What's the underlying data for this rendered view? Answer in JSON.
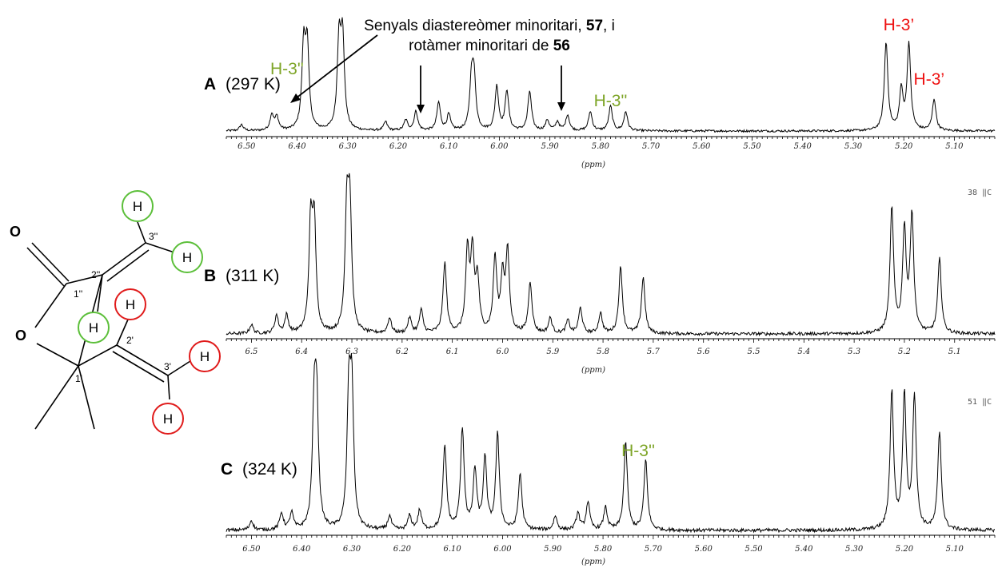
{
  "colors": {
    "green": "#7ea528",
    "red": "#ee1111",
    "circle_green": "#5cbf3a",
    "circle_red": "#e01b1b"
  },
  "annotation": {
    "line1": "Senyals diastereòmer minoritari, ",
    "line1_bold": "57",
    "line1_end": ", i",
    "line2": "rotàmer minoritari de ",
    "line2_bold": "56"
  },
  "side_numbers": [
    "38 ‖C",
    "51 ‖C"
  ],
  "molecule": {
    "atoms": {
      "O_carbonyl": "O",
      "O_ring": "O",
      "H": "H"
    },
    "locants": [
      "1''",
      "2''",
      "3''",
      "1'",
      "2'",
      "3'"
    ]
  },
  "chart_data": [
    {
      "type": "line",
      "id": "A",
      "label_letter": "A",
      "label_temp": "(297 K)",
      "xlabel": "(ppm)",
      "xlim": [
        6.54,
        5.02
      ],
      "reversed_x": true,
      "tick_labels": [
        "6.50",
        "6.40",
        "6.30",
        "6.20",
        "6.10",
        "6.00",
        "5.90",
        "5.80",
        "5.70",
        "5.60",
        "5.50",
        "5.40",
        "5.30",
        "5.20",
        "5.10"
      ],
      "peaks": [
        [
          6.51,
          0.07
        ],
        [
          6.45,
          0.18
        ],
        [
          6.44,
          0.15
        ],
        [
          6.387,
          0.92
        ],
        [
          6.38,
          0.92
        ],
        [
          6.317,
          1.0
        ],
        [
          6.31,
          1.0
        ],
        [
          6.225,
          0.1
        ],
        [
          6.185,
          0.12
        ],
        [
          6.165,
          0.22
        ],
        [
          6.12,
          0.32
        ],
        [
          6.1,
          0.18
        ],
        [
          6.055,
          0.55
        ],
        [
          6.05,
          0.55
        ],
        [
          6.005,
          0.5
        ],
        [
          5.985,
          0.45
        ],
        [
          5.94,
          0.45
        ],
        [
          5.905,
          0.12
        ],
        [
          5.885,
          0.1
        ],
        [
          5.865,
          0.18
        ],
        [
          5.82,
          0.22
        ],
        [
          5.78,
          0.28
        ],
        [
          5.75,
          0.22
        ],
        [
          5.235,
          1.0
        ],
        [
          5.205,
          0.45
        ],
        [
          5.19,
          0.98
        ],
        [
          5.14,
          0.36
        ]
      ],
      "hlabels": [
        {
          "text": "H-3''",
          "color_key": "green",
          "ppm": 6.42
        },
        {
          "text": "H-3''",
          "color_key": "green",
          "ppm": 5.78
        },
        {
          "text": "H-3’",
          "color_key": "red",
          "ppm": 5.21
        },
        {
          "text": "H-3’",
          "color_key": "red",
          "ppm": 5.15
        }
      ]
    },
    {
      "type": "line",
      "id": "B",
      "label_letter": "B",
      "label_temp": "(311 K)",
      "xlabel": "(ppm)",
      "xlim": [
        6.55,
        5.02
      ],
      "reversed_x": true,
      "tick_labels": [
        "6.5",
        "6.4",
        "6.3",
        "6.2",
        "6.1",
        "6.0",
        "5.9",
        "5.8",
        "5.7",
        "5.6",
        "5.5",
        "5.4",
        "5.3",
        "5.2",
        "5.1"
      ],
      "peaks": [
        [
          6.5,
          0.07
        ],
        [
          6.45,
          0.14
        ],
        [
          6.43,
          0.14
        ],
        [
          6.382,
          0.82
        ],
        [
          6.375,
          0.82
        ],
        [
          6.31,
          0.92
        ],
        [
          6.304,
          0.92
        ],
        [
          6.225,
          0.12
        ],
        [
          6.185,
          0.12
        ],
        [
          6.162,
          0.18
        ],
        [
          6.115,
          0.55
        ],
        [
          6.07,
          0.62
        ],
        [
          6.06,
          0.6
        ],
        [
          6.05,
          0.4
        ],
        [
          6.015,
          0.58
        ],
        [
          6.0,
          0.42
        ],
        [
          5.99,
          0.62
        ],
        [
          5.945,
          0.4
        ],
        [
          5.905,
          0.12
        ],
        [
          5.87,
          0.1
        ],
        [
          5.845,
          0.2
        ],
        [
          5.805,
          0.16
        ],
        [
          5.765,
          0.52
        ],
        [
          5.72,
          0.44
        ],
        [
          5.225,
          0.98
        ],
        [
          5.2,
          0.8
        ],
        [
          5.185,
          0.92
        ],
        [
          5.13,
          0.58
        ]
      ],
      "hlabels": []
    },
    {
      "type": "line",
      "id": "C",
      "label_letter": "C",
      "label_temp": "(324 K)",
      "xlabel": "(ppm)",
      "xlim": [
        6.55,
        5.02
      ],
      "reversed_x": true,
      "tick_labels": [
        "6.50",
        "6.40",
        "6.30",
        "6.20",
        "6.10",
        "6.00",
        "5.90",
        "5.80",
        "5.70",
        "5.60",
        "5.50",
        "5.40",
        "5.30",
        "5.20",
        "5.10"
      ],
      "peaks": [
        [
          6.5,
          0.07
        ],
        [
          6.44,
          0.12
        ],
        [
          6.42,
          0.12
        ],
        [
          6.375,
          0.82
        ],
        [
          6.37,
          0.82
        ],
        [
          6.306,
          0.92
        ],
        [
          6.3,
          0.92
        ],
        [
          6.225,
          0.1
        ],
        [
          6.185,
          0.1
        ],
        [
          6.165,
          0.14
        ],
        [
          6.115,
          0.6
        ],
        [
          6.08,
          0.72
        ],
        [
          6.055,
          0.42
        ],
        [
          6.035,
          0.5
        ],
        [
          6.01,
          0.68
        ],
        [
          5.965,
          0.4
        ],
        [
          5.895,
          0.1
        ],
        [
          5.85,
          0.12
        ],
        [
          5.83,
          0.2
        ],
        [
          5.795,
          0.16
        ],
        [
          5.755,
          0.62
        ],
        [
          5.715,
          0.5
        ],
        [
          5.225,
          0.98
        ],
        [
          5.2,
          0.95
        ],
        [
          5.18,
          0.95
        ],
        [
          5.13,
          0.7
        ]
      ],
      "hlabels": [
        {
          "text": "H-3''",
          "color_key": "green",
          "ppm": 5.73
        }
      ]
    }
  ]
}
